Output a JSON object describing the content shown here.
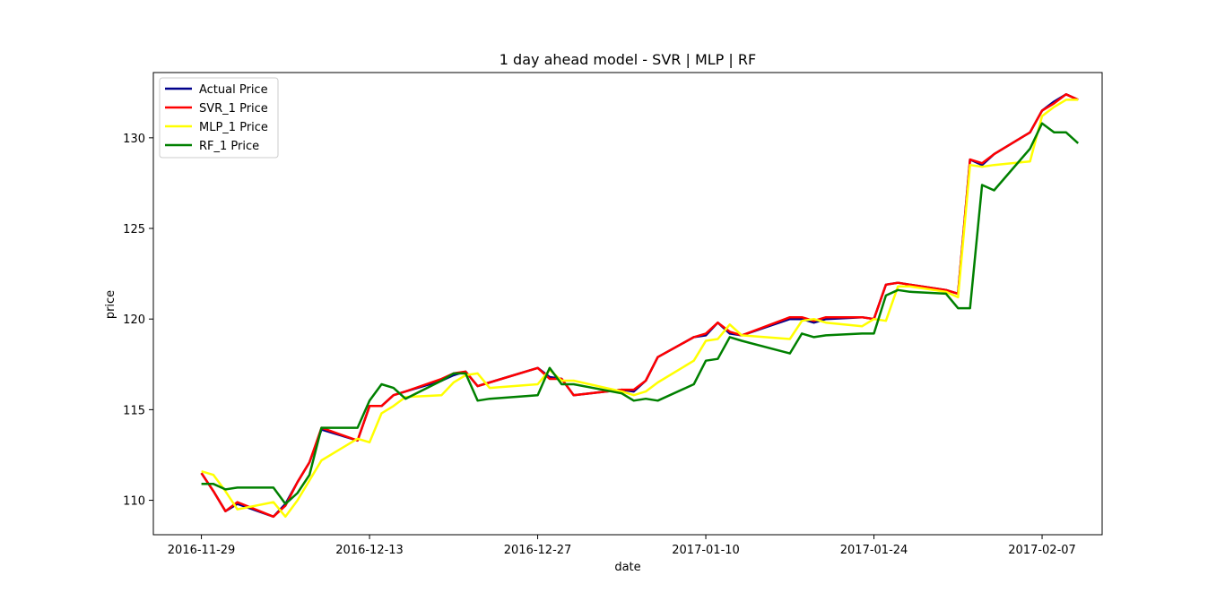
{
  "chart_data": {
    "type": "line",
    "title": "1 day ahead model - SVR | MLP | RF",
    "xlabel": "date",
    "ylabel": "price",
    "x_type": "date",
    "xlim": [
      "2016-11-25",
      "2017-02-12"
    ],
    "ylim": [
      108.1,
      133.6
    ],
    "x_ticks": [
      "2016-11-29",
      "2016-12-13",
      "2016-12-27",
      "2017-01-10",
      "2017-01-24",
      "2017-02-07"
    ],
    "y_ticks": [
      110,
      115,
      120,
      125,
      130
    ],
    "grid": false,
    "legend_position": "upper left",
    "dates": [
      "2016-11-29",
      "2016-11-30",
      "2016-12-01",
      "2016-12-02",
      "2016-12-05",
      "2016-12-06",
      "2016-12-07",
      "2016-12-08",
      "2016-12-09",
      "2016-12-12",
      "2016-12-13",
      "2016-12-14",
      "2016-12-15",
      "2016-12-16",
      "2016-12-19",
      "2016-12-20",
      "2016-12-21",
      "2016-12-22",
      "2016-12-23",
      "2016-12-27",
      "2016-12-28",
      "2016-12-29",
      "2016-12-30",
      "2017-01-03",
      "2017-01-04",
      "2017-01-05",
      "2017-01-06",
      "2017-01-09",
      "2017-01-10",
      "2017-01-11",
      "2017-01-12",
      "2017-01-13",
      "2017-01-17",
      "2017-01-18",
      "2017-01-19",
      "2017-01-20",
      "2017-01-23",
      "2017-01-24",
      "2017-01-25",
      "2017-01-26",
      "2017-01-27",
      "2017-01-30",
      "2017-01-31",
      "2017-02-01",
      "2017-02-02",
      "2017-02-03",
      "2017-02-06",
      "2017-02-07",
      "2017-02-08",
      "2017-02-09",
      "2017-02-10"
    ],
    "series": [
      {
        "name": "Actual Price",
        "color": "#00008b",
        "values": [
          111.5,
          110.5,
          109.4,
          109.8,
          109.1,
          109.8,
          111.0,
          112.1,
          113.9,
          113.3,
          115.2,
          115.2,
          115.8,
          116.0,
          116.6,
          116.9,
          117.1,
          116.3,
          116.5,
          117.3,
          116.8,
          116.7,
          115.8,
          116.1,
          116.0,
          116.6,
          117.9,
          119.0,
          119.1,
          119.8,
          119.2,
          119.1,
          120.0,
          120.0,
          119.8,
          120.0,
          120.1,
          120.0,
          121.9,
          122.0,
          121.9,
          121.6,
          121.4,
          128.8,
          128.5,
          129.1,
          130.3,
          131.5,
          132.0,
          132.4,
          132.1
        ]
      },
      {
        "name": "SVR_1 Price",
        "color": "#ff0000",
        "values": [
          111.5,
          110.5,
          109.4,
          109.9,
          109.1,
          109.7,
          111.0,
          112.1,
          114.0,
          113.3,
          115.2,
          115.2,
          115.8,
          116.0,
          116.7,
          117.0,
          117.1,
          116.3,
          116.5,
          117.3,
          116.7,
          116.7,
          115.8,
          116.1,
          116.1,
          116.6,
          117.9,
          119.0,
          119.2,
          119.8,
          119.3,
          119.1,
          120.1,
          120.1,
          119.9,
          120.1,
          120.1,
          120.0,
          121.9,
          122.0,
          121.9,
          121.6,
          121.4,
          128.8,
          128.6,
          129.1,
          130.3,
          131.5,
          131.9,
          132.4,
          132.1
        ]
      },
      {
        "name": "MLP_1 Price",
        "color": "#ffff00",
        "values": [
          111.6,
          111.4,
          110.5,
          109.5,
          109.9,
          109.1,
          110.0,
          111.1,
          112.2,
          113.4,
          113.2,
          114.8,
          115.2,
          115.7,
          115.8,
          116.5,
          116.9,
          117.0,
          116.2,
          116.4,
          117.2,
          116.6,
          116.6,
          116.0,
          115.8,
          116.0,
          116.5,
          117.7,
          118.8,
          118.9,
          119.7,
          119.1,
          118.9,
          119.9,
          120.0,
          119.8,
          119.6,
          120.0,
          119.9,
          121.8,
          121.8,
          121.5,
          121.2,
          128.5,
          128.4,
          128.5,
          128.7,
          131.2,
          131.7,
          132.1,
          132.1
        ]
      },
      {
        "name": "RF_1 Price",
        "color": "#008000",
        "values": [
          110.9,
          110.9,
          110.6,
          110.7,
          110.7,
          109.8,
          110.4,
          111.4,
          114.0,
          114.0,
          115.5,
          116.4,
          116.2,
          115.6,
          116.6,
          117.0,
          117.0,
          115.5,
          115.6,
          115.8,
          117.3,
          116.4,
          116.4,
          115.9,
          115.5,
          115.6,
          115.5,
          116.4,
          117.7,
          117.8,
          119.0,
          118.8,
          118.1,
          119.2,
          119.0,
          119.1,
          119.2,
          119.2,
          121.3,
          121.6,
          121.5,
          121.4,
          120.6,
          120.6,
          127.4,
          127.1,
          129.4,
          130.8,
          130.3,
          130.3,
          129.7
        ]
      }
    ]
  }
}
